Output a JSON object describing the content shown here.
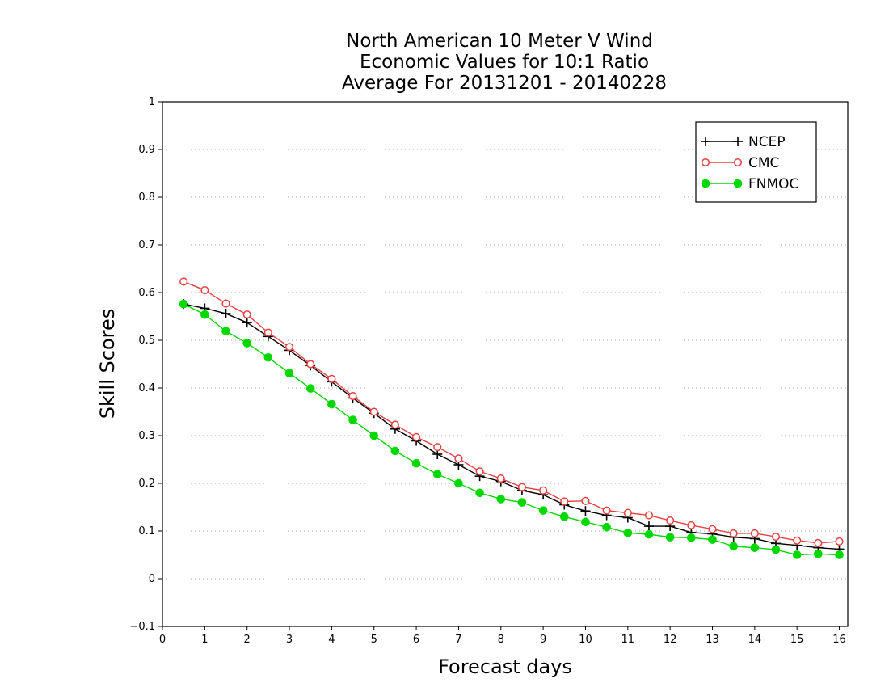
{
  "chart_data": {
    "type": "line",
    "title": [
      "North American 10 Meter V Wind",
      "Economic Values for 10:1 Ratio",
      "Average For 20131201 - 20140228"
    ],
    "xlabel": "Forecast days",
    "ylabel": "Skill Scores",
    "xlim": [
      0,
      16.2
    ],
    "ylim": [
      -0.1,
      1
    ],
    "xticks": [
      0,
      1,
      2,
      3,
      4,
      5,
      6,
      7,
      8,
      9,
      10,
      11,
      12,
      13,
      14,
      15,
      16
    ],
    "yticks": [
      -0.1,
      0,
      0.1,
      0.2,
      0.3,
      0.4,
      0.5,
      0.6,
      0.7,
      0.8,
      0.9,
      1
    ],
    "ytick_labels": [
      "−0.1",
      "0",
      "0.1",
      "0.2",
      "0.3",
      "0.4",
      "0.5",
      "0.6",
      "0.7",
      "0.8",
      "0.9",
      "1"
    ],
    "grid": "horizontal dotted",
    "legend_position": "top-right",
    "x": [
      0.5,
      1,
      1.5,
      2,
      2.5,
      3,
      3.5,
      4,
      4.5,
      5,
      5.5,
      6,
      6.5,
      7,
      7.5,
      8,
      8.5,
      9,
      9.5,
      10,
      10.5,
      11,
      11.5,
      12,
      12.5,
      13,
      13.5,
      14,
      14.5,
      15,
      15.5,
      16
    ],
    "series": [
      {
        "name": "NCEP",
        "color": "#000000",
        "marker": "plus",
        "values": [
          0.576,
          0.567,
          0.556,
          0.537,
          0.508,
          0.479,
          0.447,
          0.413,
          0.379,
          0.347,
          0.314,
          0.289,
          0.261,
          0.239,
          0.215,
          0.204,
          0.185,
          0.176,
          0.155,
          0.142,
          0.133,
          0.128,
          0.11,
          0.11,
          0.097,
          0.094,
          0.087,
          0.084,
          0.074,
          0.07,
          0.065,
          0.062
        ]
      },
      {
        "name": "CMC",
        "color": "#e84040",
        "marker": "open-circle",
        "values": [
          0.623,
          0.605,
          0.577,
          0.554,
          0.516,
          0.486,
          0.45,
          0.419,
          0.383,
          0.35,
          0.323,
          0.297,
          0.276,
          0.252,
          0.225,
          0.21,
          0.192,
          0.185,
          0.162,
          0.163,
          0.143,
          0.138,
          0.133,
          0.122,
          0.112,
          0.104,
          0.095,
          0.095,
          0.088,
          0.08,
          0.075,
          0.078
        ]
      },
      {
        "name": "FNMOC",
        "color": "#00d800",
        "marker": "filled-circle",
        "values": [
          0.576,
          0.554,
          0.519,
          0.494,
          0.464,
          0.431,
          0.399,
          0.366,
          0.333,
          0.3,
          0.268,
          0.242,
          0.219,
          0.2,
          0.18,
          0.167,
          0.16,
          0.143,
          0.13,
          0.119,
          0.108,
          0.096,
          0.093,
          0.087,
          0.086,
          0.082,
          0.068,
          0.065,
          0.061,
          0.05,
          0.052,
          0.05
        ]
      }
    ]
  }
}
